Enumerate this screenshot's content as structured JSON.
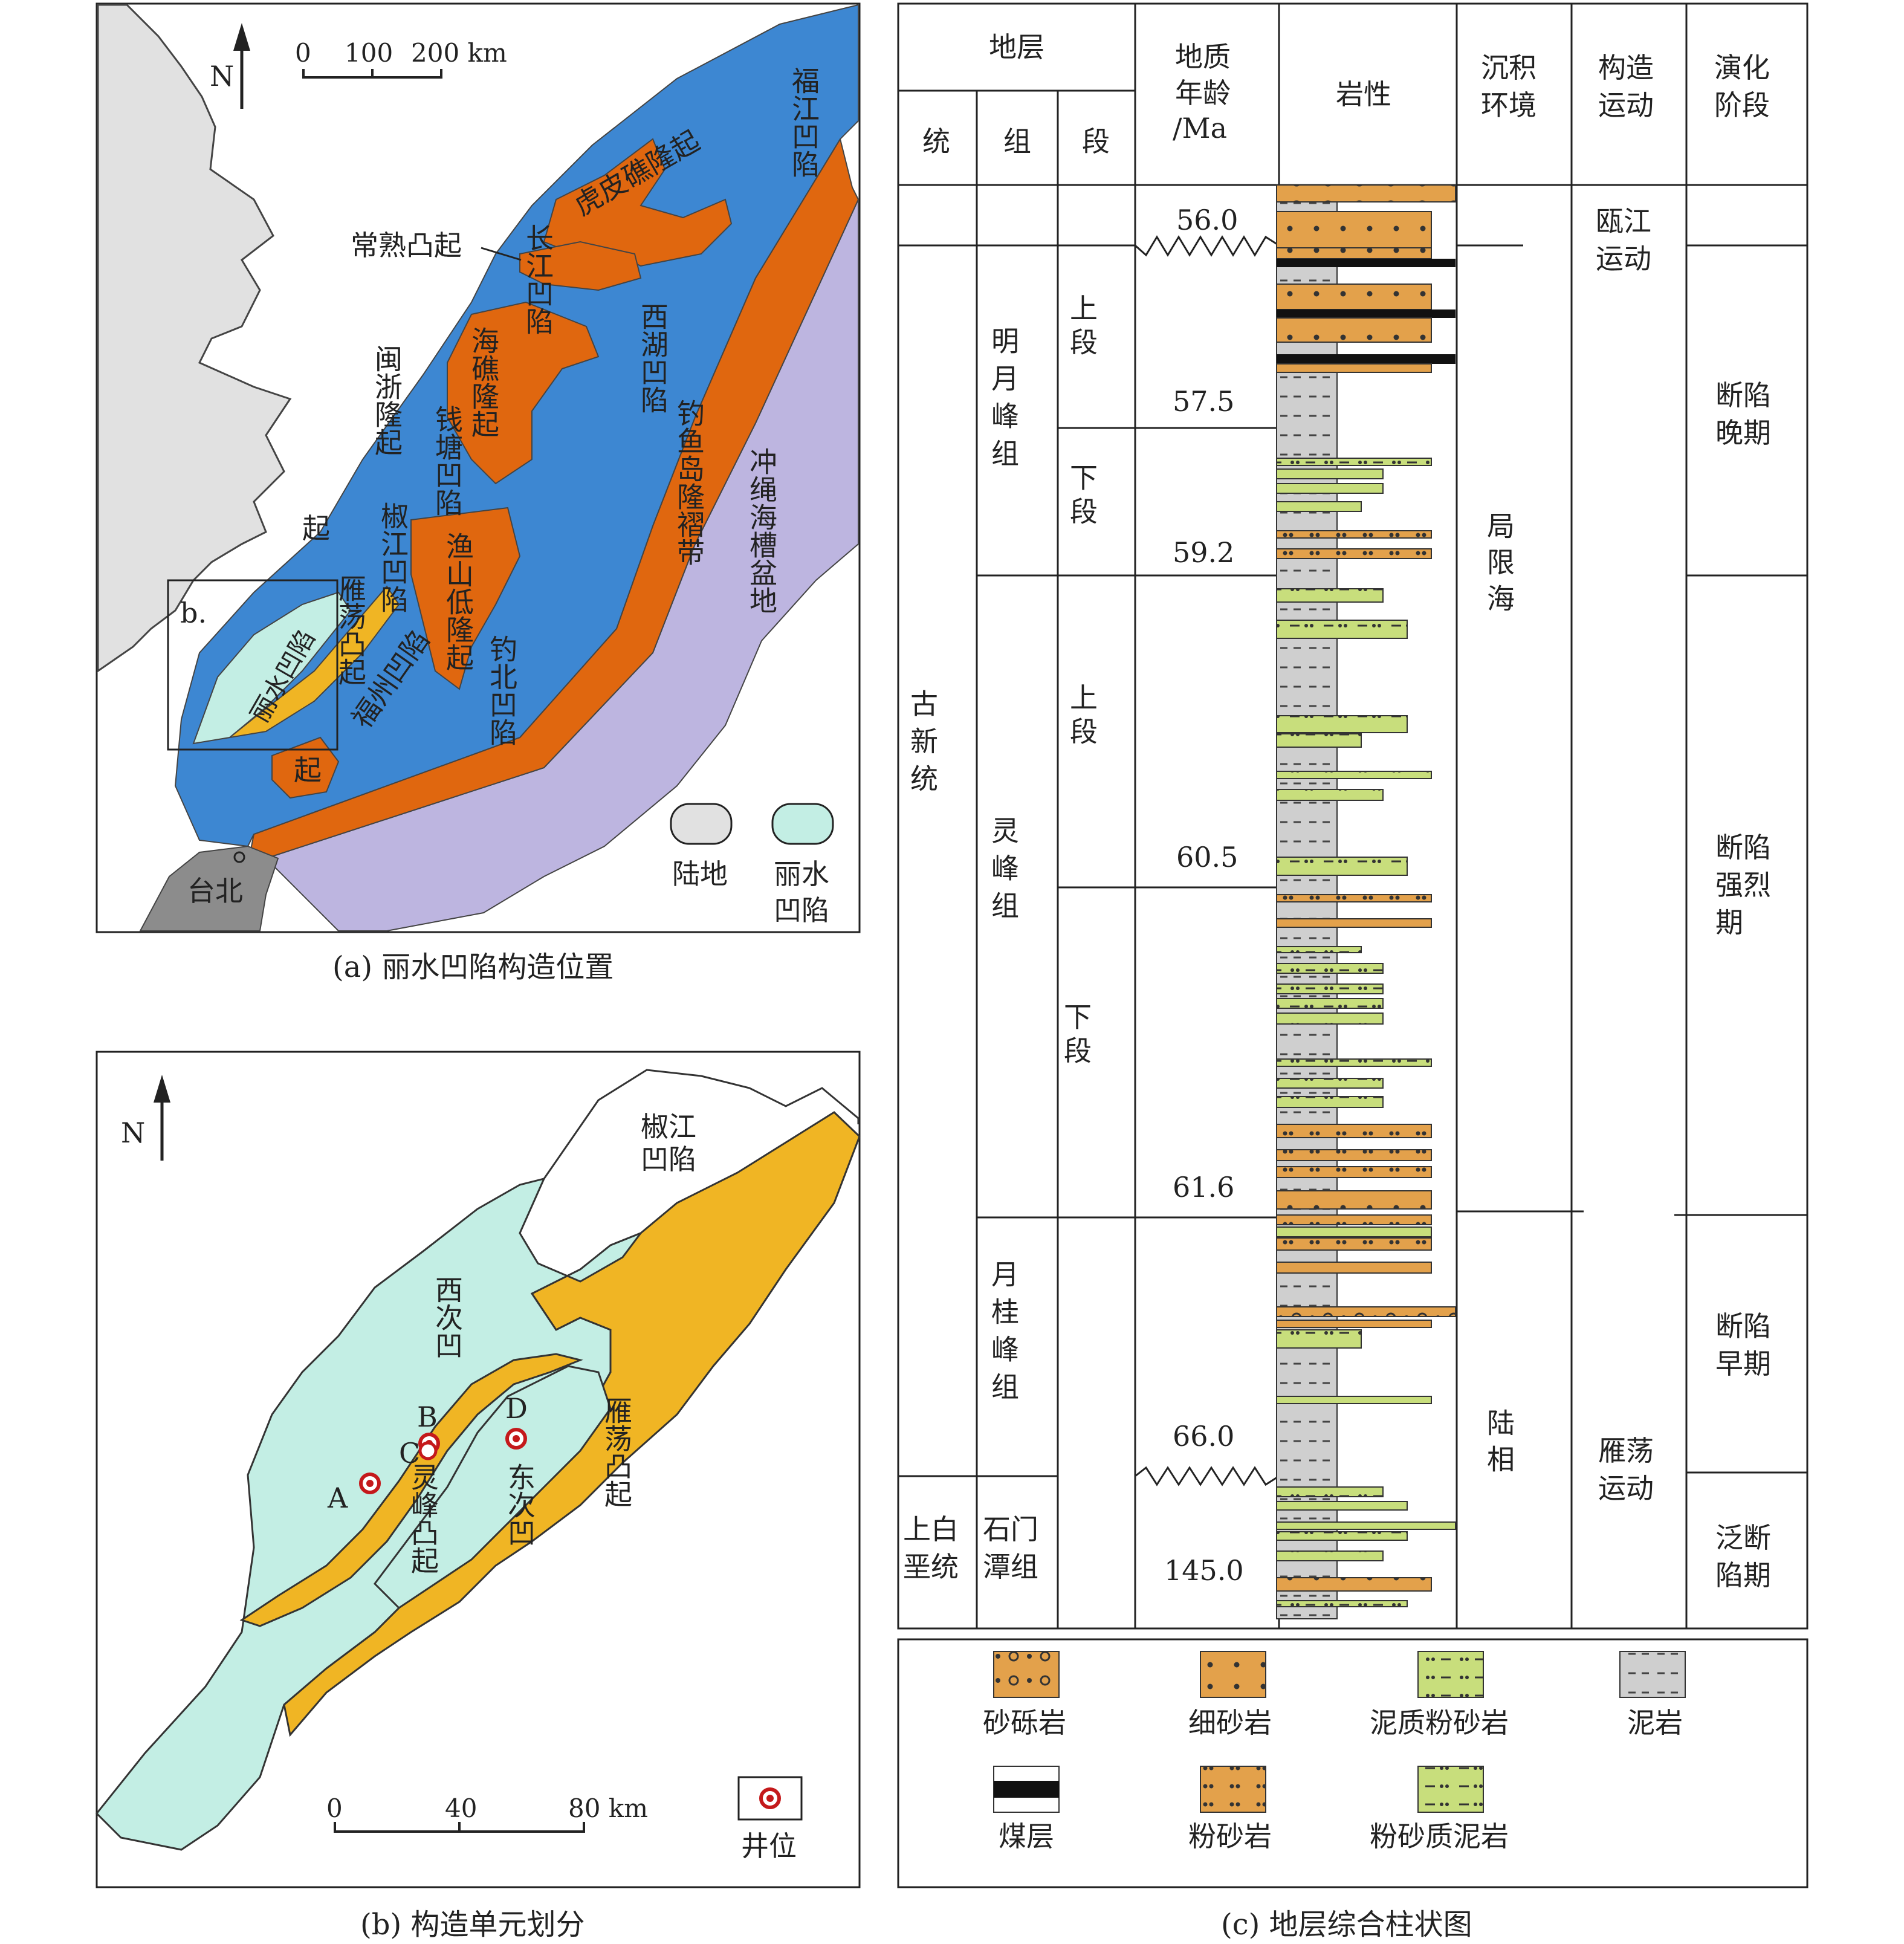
{
  "map_a": {
    "caption": "(a) 丽水凹陷构造位置",
    "north": "N",
    "scale": {
      "ticks": [
        "0",
        "100",
        "200 km"
      ]
    },
    "labels": {
      "fujiang": "福江凹陷",
      "changjiang": "长江凹陷",
      "hupi": "虎皮礁隆起",
      "changshu": "常熟凸起",
      "xihu": "西湖凹陷",
      "haijiao": "海礁隆起",
      "qiantang": "钱塘凹陷",
      "minzhe": "闽浙隆起",
      "diaoyu": "钓鱼岛隆褶带",
      "chongsheng": "冲绳海槽盆地",
      "yushan": "渔山低隆起",
      "jiaojiang": "椒江凹陷",
      "yandang": "雁荡凸起",
      "fuzhou": "福州凹陷",
      "diaobei": "钓北凹陷",
      "lishui": "丽水凹陷",
      "taibei": "台北",
      "inset": "b.",
      "qi": "起"
    },
    "legend": {
      "land": "陆地",
      "lishui_line1": "丽水",
      "lishui_line2": "凹陷"
    },
    "colors": {
      "blue": "#3d87d2",
      "orange": "#e0670f",
      "lavender": "#bdb5e0",
      "land": "#e1e1e1",
      "lishui": "#c3eee4",
      "yandang": "#f0b524",
      "taipei": "#8c8c8c"
    }
  },
  "map_b": {
    "caption": "(b) 构造单元划分",
    "north": "N",
    "scale": {
      "ticks": [
        "0",
        "40",
        "80 km"
      ]
    },
    "labels": {
      "jiaojiang_line1": "椒江",
      "jiaojiang_line2": "凹陷",
      "xici": "西次凹",
      "lingfeng": "灵峰凸起",
      "dongci": "东次凹",
      "yandang": "雁荡凸起"
    },
    "wells": [
      "A",
      "B",
      "C",
      "D"
    ],
    "legend": {
      "well": "井位"
    },
    "colors": {
      "lishui": "#c3eee4",
      "yandang": "#f0b524"
    }
  },
  "column_c": {
    "caption": "(c) 地层综合柱状图",
    "headers": {
      "stratum": "地层",
      "series": "统",
      "formation": "组",
      "member": "段",
      "age_line1": "地质",
      "age_line2": "年龄",
      "age_line3": "/Ma",
      "lithology": "岩性",
      "env_line1": "沉积",
      "env_line2": "环境",
      "tectonic_line1": "构造",
      "tectonic_line2": "运动",
      "stage_line1": "演化",
      "stage_line2": "阶段"
    },
    "series_names": {
      "paleogene": "古新统",
      "upper_cretaceous_line1": "上白",
      "upper_cretaceous_line2": "垩统"
    },
    "formations": {
      "mingyuefeng": "明月峰组",
      "lingfeng": "灵峰组",
      "yueguifeng": "月桂峰组",
      "shimentan_line1": "石门",
      "shimentan_line2": "潭组"
    },
    "members": {
      "upper": "上段",
      "lower": "下段"
    },
    "ages": [
      "56.0",
      "57.5",
      "59.2",
      "60.5",
      "61.6",
      "66.0",
      "145.0"
    ],
    "environments": {
      "restricted_sea": "局限海",
      "continental": "陆相"
    },
    "tectonics": {
      "oujiang_line1": "瓯江",
      "oujiang_line2": "运动",
      "yandang_line1": "雁荡",
      "yandang_line2": "运动"
    },
    "stages": {
      "late_rift": "断陷晚期",
      "strong_rift": "断陷强烈期",
      "early_rift": "断陷早期",
      "pan_rift": "泛断陷期"
    },
    "legend": {
      "conglomeratic_sandstone": "砂砾岩",
      "fine_sandstone": "细砂岩",
      "muddy_siltstone": "泥质粉砂岩",
      "mudstone": "泥岩",
      "coal": "煤层",
      "siltstone": "粉砂岩",
      "silty_mudstone": "粉砂质泥岩"
    },
    "colors": {
      "sand": "#e3a14b",
      "green": "#c8de7c",
      "mud": "#cfcfcf",
      "coal": "#111111"
    }
  }
}
